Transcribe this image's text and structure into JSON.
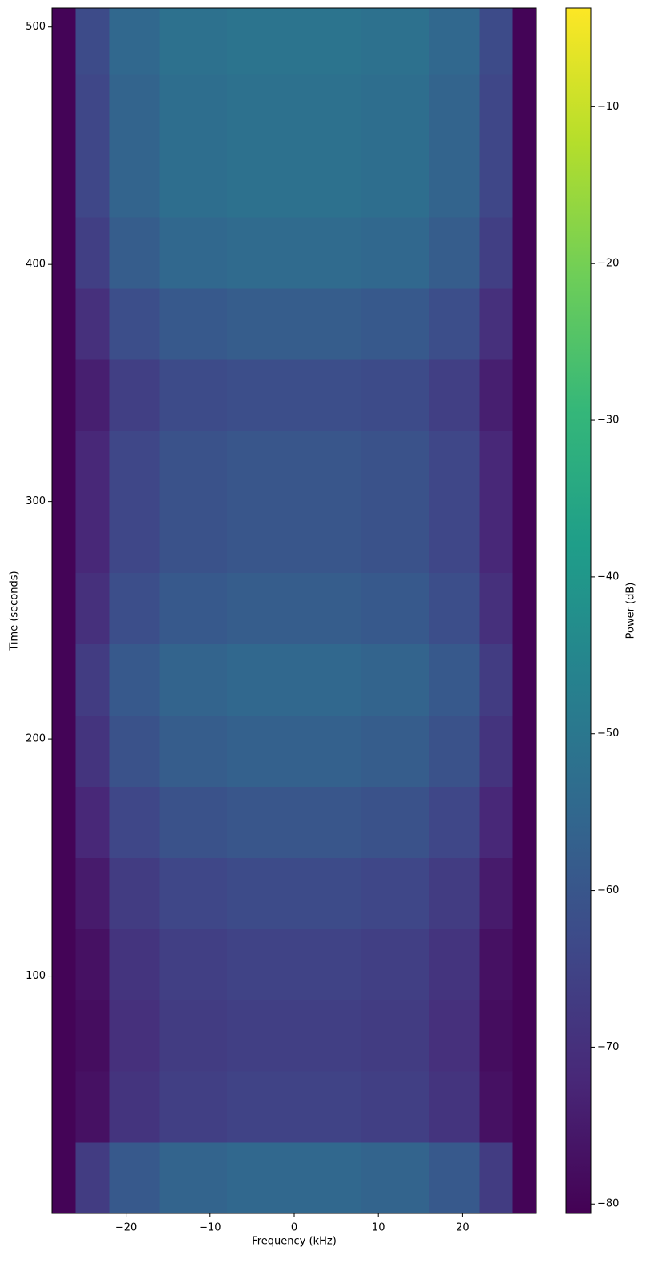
{
  "chart_data": {
    "type": "spectrogram",
    "xlabel": "Frequency (kHz)",
    "ylabel": "Time (seconds)",
    "colorbar_label": "Power (dB)",
    "xlim": [
      -28.8,
      28.8
    ],
    "ylim": [
      0,
      508
    ],
    "clim": [
      -80.6,
      -3.7
    ],
    "xticks": [
      {
        "value": -20,
        "label": "−20"
      },
      {
        "value": -10,
        "label": "−10"
      },
      0,
      10,
      20
    ],
    "yticks": [
      100,
      200,
      300,
      400,
      500
    ],
    "cticks": [
      {
        "value": -80,
        "label": "−80"
      },
      {
        "value": -70,
        "label": "−70"
      },
      {
        "value": -60,
        "label": "−60"
      },
      {
        "value": -50,
        "label": "−50"
      },
      {
        "value": -40,
        "label": "−40"
      },
      {
        "value": -30,
        "label": "−30"
      },
      {
        "value": -20,
        "label": "−20"
      },
      {
        "value": -10,
        "label": "−10"
      }
    ],
    "colormap": [
      "#440154",
      "#482878",
      "#3e4989",
      "#31688e",
      "#26828e",
      "#1f9e89",
      "#35b779",
      "#6ece58",
      "#b5de2b",
      "#fde725"
    ],
    "x_bins": [
      -28.8,
      -26,
      -22,
      -16,
      -8,
      8,
      16,
      22,
      26,
      28.8
    ],
    "y_bins": [
      0,
      30,
      60,
      90,
      120,
      150,
      180,
      210,
      240,
      270,
      300,
      330,
      360,
      390,
      420,
      450,
      480,
      508
    ],
    "values": [
      [
        -80,
        -67,
        -59,
        -56,
        -55,
        -56,
        -59,
        -67,
        -80
      ],
      [
        -80,
        -77,
        -69,
        -66,
        -65,
        -66,
        -69,
        -77,
        -80
      ],
      [
        -80,
        -78,
        -70,
        -67,
        -66,
        -67,
        -70,
        -78,
        -80
      ],
      [
        -80,
        -77,
        -69,
        -66,
        -65,
        -66,
        -69,
        -77,
        -80
      ],
      [
        -80,
        -75,
        -67,
        -64,
        -63,
        -64,
        -67,
        -75,
        -80
      ],
      [
        -80,
        -72,
        -64,
        -61,
        -60,
        -61,
        -64,
        -72,
        -80
      ],
      [
        -80,
        -69,
        -61,
        -58,
        -57,
        -58,
        -61,
        -69,
        -80
      ],
      [
        -80,
        -67,
        -59,
        -56,
        -55,
        -56,
        -59,
        -67,
        -80
      ],
      [
        -80,
        -70,
        -62,
        -59,
        -58,
        -59,
        -62,
        -70,
        -80
      ],
      [
        -80,
        -72,
        -64,
        -61,
        -60,
        -61,
        -64,
        -72,
        -80
      ],
      [
        -80,
        -72,
        -64,
        -61,
        -60,
        -61,
        -64,
        -72,
        -80
      ],
      [
        -80,
        -74,
        -66,
        -63,
        -62,
        -63,
        -66,
        -74,
        -80
      ],
      [
        -80,
        -70,
        -62,
        -59,
        -58,
        -59,
        -62,
        -70,
        -80
      ],
      [
        -80,
        -66,
        -58,
        -55,
        -54,
        -55,
        -58,
        -66,
        -80
      ],
      [
        -80,
        -64,
        -56,
        -53,
        -52,
        -53,
        -56,
        -64,
        -80
      ],
      [
        -80,
        -64,
        -56,
        -53,
        -52,
        -53,
        -56,
        -64,
        -80
      ],
      [
        -80,
        -63,
        -55,
        -52,
        -51,
        -52,
        -55,
        -63,
        -80
      ]
    ]
  }
}
